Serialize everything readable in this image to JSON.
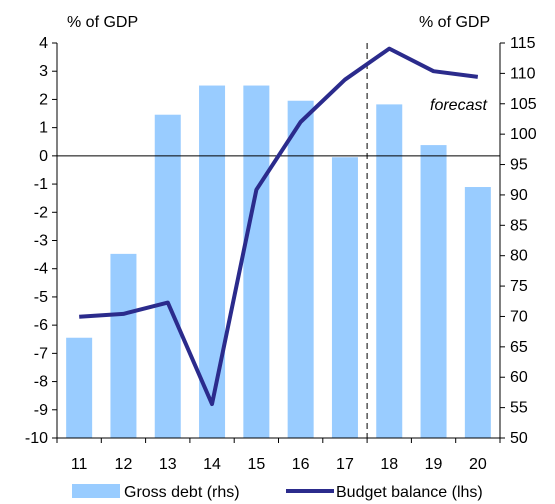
{
  "chart_data": {
    "type": "bar",
    "categories": [
      "11",
      "12",
      "13",
      "14",
      "15",
      "16",
      "17",
      "18",
      "19",
      "20"
    ],
    "series": [
      {
        "name": "Gross debt (rhs)",
        "type": "bar",
        "axis": "right",
        "color": "#99ccff",
        "values": [
          66.5,
          80.3,
          103.2,
          108.0,
          108.0,
          105.5,
          96.2,
          104.9,
          98.2,
          91.3
        ]
      },
      {
        "name": "Budget balance (lhs)",
        "type": "line",
        "axis": "left",
        "color": "#2b2b8c",
        "values": [
          -5.7,
          -5.6,
          -5.2,
          -8.8,
          -1.2,
          1.2,
          2.7,
          3.8,
          3.0,
          2.8
        ]
      }
    ],
    "left_axis": {
      "unit_label": "% of GDP",
      "ylim": [
        -10,
        4
      ],
      "ticks": [
        "4",
        "3",
        "2",
        "1",
        "0",
        "-1",
        "-2",
        "-3",
        "-4",
        "-5",
        "-6",
        "-7",
        "-8",
        "-9",
        "-10"
      ]
    },
    "right_axis": {
      "unit_label": "% of GDP",
      "ylim": [
        50,
        115
      ],
      "ticks": [
        "115",
        "110",
        "105",
        "100",
        "95",
        "90",
        "85",
        "80",
        "75",
        "70",
        "65",
        "60",
        "55",
        "50"
      ]
    },
    "annotation": "forecast",
    "forecast_from_after": "17",
    "legend_placement": "bottom"
  }
}
